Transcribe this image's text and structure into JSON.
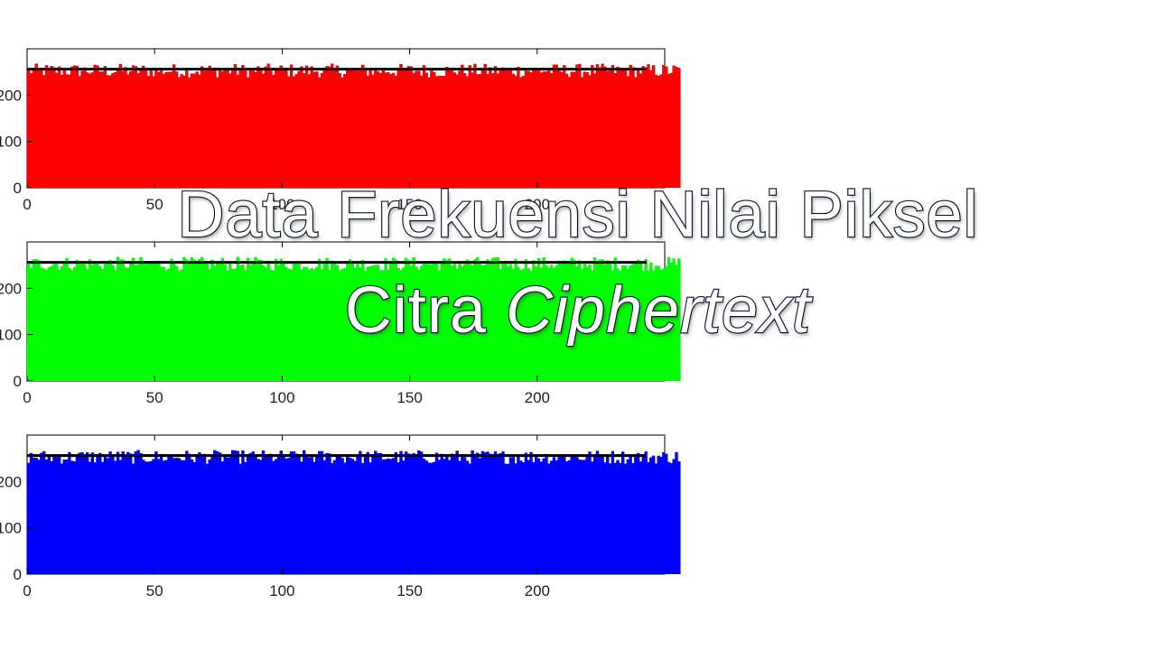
{
  "title": {
    "line1": "Data Frekuensi Nilai Piksel",
    "line2_plain": "Citra ",
    "line2_italic": "Ciphertext"
  },
  "chart_data": [
    {
      "type": "bar",
      "series": [
        {
          "color": "#ff0000"
        }
      ],
      "x_range": [
        0,
        250
      ],
      "y_range": [
        0,
        300
      ],
      "x_ticks": [
        "0",
        "50",
        "100",
        "150",
        "200"
      ],
      "y_ticks": [
        "0",
        "100",
        "200"
      ],
      "mean_line": 256,
      "mean_color": "#000000"
    },
    {
      "type": "bar",
      "series": [
        {
          "color": "#00ff00"
        }
      ],
      "x_range": [
        0,
        250
      ],
      "y_range": [
        0,
        300
      ],
      "x_ticks": [
        "0",
        "50",
        "100",
        "150",
        "200"
      ],
      "y_ticks": [
        "0",
        "100",
        "200"
      ],
      "mean_line": 256,
      "mean_color": "#000000"
    },
    {
      "type": "bar",
      "series": [
        {
          "color": "#0000ff"
        }
      ],
      "x_range": [
        0,
        250
      ],
      "y_range": [
        0,
        300
      ],
      "x_ticks": [
        "0",
        "50",
        "100",
        "150",
        "200"
      ],
      "y_ticks": [
        "0",
        "100",
        "200"
      ],
      "mean_line": 256,
      "mean_color": "#000000"
    }
  ]
}
